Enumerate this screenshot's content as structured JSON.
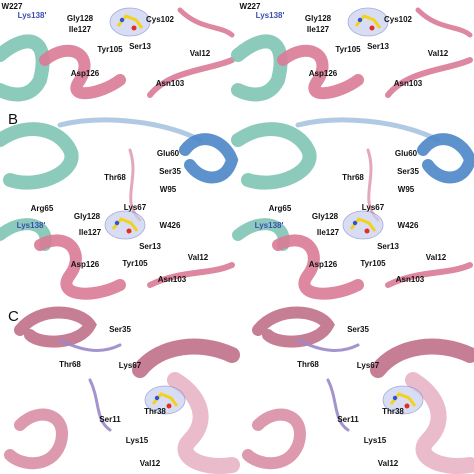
{
  "panels": [
    {
      "labels": [
        "W227",
        "Lys138'",
        "Gly128",
        "Ile127",
        "Cys102",
        "Ser13",
        "Tyr105",
        "Val12",
        "Asp126",
        "Asn103"
      ]
    },
    {
      "letter": "B",
      "labels": [
        "Glu60",
        "Ser35",
        "Thr68",
        "W95",
        "Arg65",
        "Lys67",
        "W426",
        "Gly128",
        "Lys138'",
        "Ile127",
        "Ser13",
        "Val12",
        "Asp126",
        "Tyr105",
        "Asn103"
      ]
    },
    {
      "letter": "C",
      "labels": [
        "Ser35",
        "Thr68",
        "Lys67",
        "Thr38",
        "Ser11",
        "Lys15",
        "Val12"
      ]
    }
  ]
}
